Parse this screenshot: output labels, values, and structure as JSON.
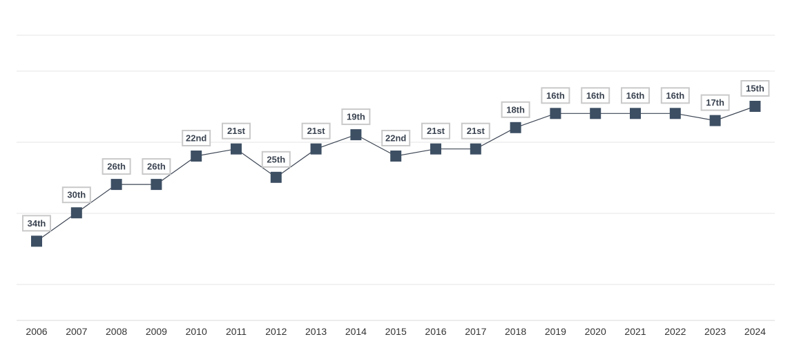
{
  "chart_data": {
    "type": "line",
    "title": "",
    "xlabel": "",
    "ylabel": "",
    "categories": [
      "2006",
      "2007",
      "2008",
      "2009",
      "2010",
      "2011",
      "2012",
      "2013",
      "2014",
      "2015",
      "2016",
      "2017",
      "2018",
      "2019",
      "2020",
      "2021",
      "2022",
      "2023",
      "2024"
    ],
    "series": [
      {
        "values": [
          34,
          30,
          26,
          26,
          22,
          21,
          25,
          21,
          19,
          22,
          21,
          21,
          18,
          16,
          16,
          16,
          16,
          17,
          15
        ],
        "data_labels": [
          "34th",
          "30th",
          "26th",
          "26th",
          "22nd",
          "21st",
          "25th",
          "21st",
          "19th",
          "22nd",
          "21st",
          "21st",
          "18th",
          "16th",
          "16th",
          "16th",
          "16th",
          "17th",
          "15th"
        ]
      }
    ],
    "y_axis_inverted": true,
    "grid": true,
    "legend": false,
    "colors": {
      "line": "#3d4654",
      "marker": "#3d4f63",
      "label_border": "#c9c9c9",
      "label_text": "#3a4350",
      "grid": "#e6e6e6"
    }
  }
}
